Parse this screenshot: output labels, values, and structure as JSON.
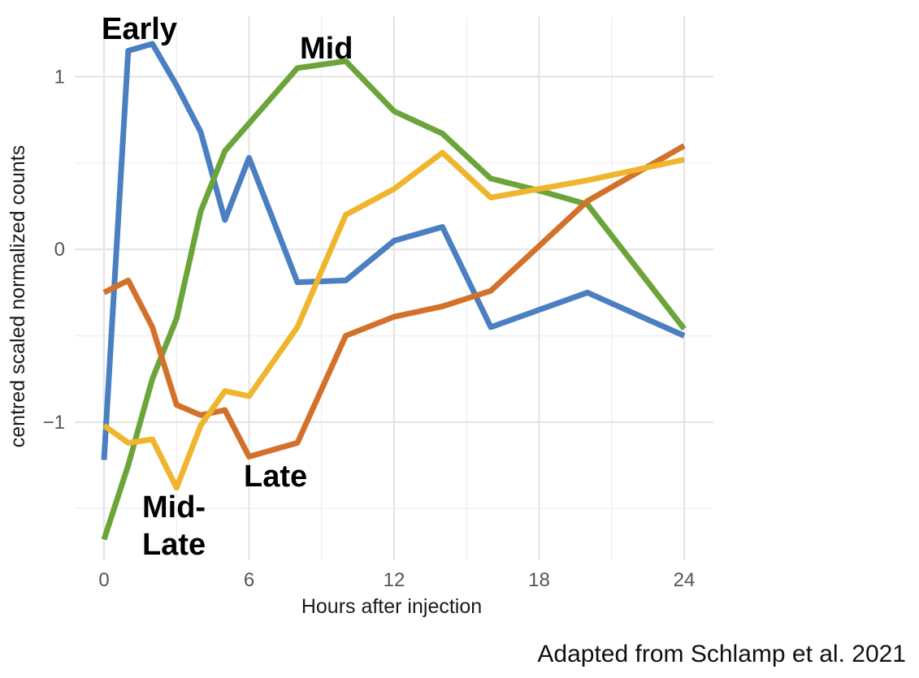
{
  "chart_data": {
    "type": "line",
    "title": "",
    "xlabel": "Hours after injection",
    "ylabel": "centred scaled normalized counts",
    "xlim": [
      0,
      24
    ],
    "ylim": [
      -1.8,
      1.35
    ],
    "xticks": [
      0,
      6,
      12,
      18,
      24
    ],
    "xtick_labels": [
      "0",
      "6",
      "12",
      "18",
      "24"
    ],
    "yticks": [
      1,
      0,
      -1
    ],
    "ytick_labels": [
      "1",
      "0",
      "−1"
    ],
    "grid": true,
    "legend": "none",
    "series": [
      {
        "color": "#4a7fc1",
        "x": [
          0,
          1,
          2,
          3,
          4,
          5,
          6,
          8,
          10,
          12,
          14,
          16,
          18,
          20,
          24
        ],
        "y": [
          -1.22,
          1.15,
          1.19,
          0.95,
          0.68,
          0.17,
          0.53,
          -0.19,
          -0.18,
          0.05,
          0.13,
          -0.45,
          -0.35,
          -0.25,
          -0.5
        ]
      },
      {
        "color": "#6ba53a",
        "x": [
          0,
          1,
          2,
          3,
          4,
          5,
          6,
          8,
          10,
          12,
          14,
          16,
          18,
          20,
          24
        ],
        "y": [
          -1.68,
          -1.25,
          -0.75,
          -0.4,
          0.22,
          0.57,
          0.73,
          1.05,
          1.09,
          0.8,
          0.67,
          0.41,
          0.34,
          0.26,
          -0.46
        ]
      },
      {
        "color": "#d3712b",
        "x": [
          0,
          1,
          2,
          3,
          4,
          5,
          6,
          8,
          10,
          12,
          14,
          16,
          18,
          20,
          24
        ],
        "y": [
          -0.25,
          -0.18,
          -0.45,
          -0.9,
          -0.96,
          -0.93,
          -1.2,
          -1.12,
          -0.5,
          -0.39,
          -0.33,
          -0.24,
          0.02,
          0.28,
          0.6
        ]
      },
      {
        "color": "#efb52d",
        "x": [
          0,
          1,
          2,
          3,
          4,
          5,
          6,
          8,
          10,
          12,
          14,
          16,
          18,
          20,
          24
        ],
        "y": [
          -1.02,
          -1.12,
          -1.1,
          -1.38,
          -1.02,
          -0.82,
          -0.85,
          -0.45,
          0.2,
          0.35,
          0.56,
          0.3,
          0.35,
          0.4,
          0.52
        ]
      }
    ],
    "annotations": [
      "Early",
      "Mid",
      "Mid-",
      "Late",
      "Late"
    ]
  },
  "credit": "Adapted from Schlamp et al. 2021"
}
